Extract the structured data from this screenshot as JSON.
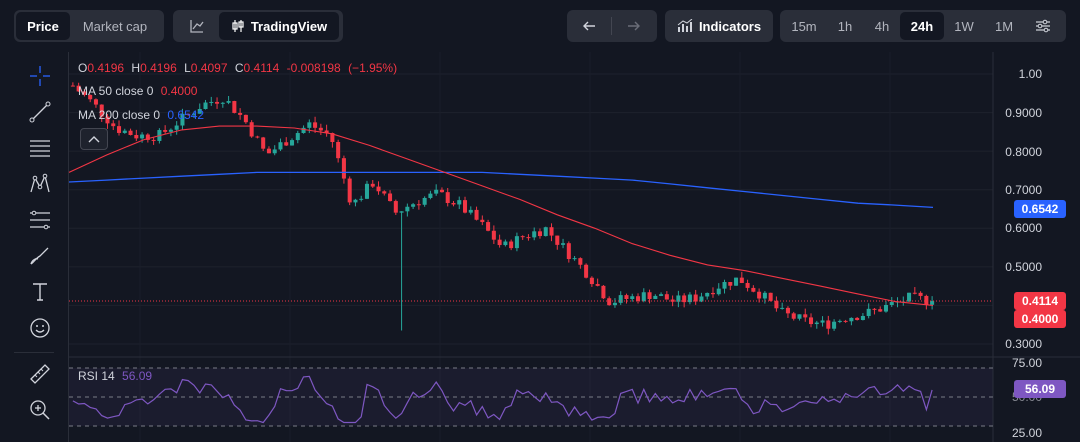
{
  "topbar": {
    "mode_tabs": [
      {
        "label": "Price",
        "active": true
      },
      {
        "label": "Market cap",
        "active": false
      }
    ],
    "chart_types": [
      {
        "icon": "line-chart-icon",
        "active": false
      },
      {
        "label": "TradingView",
        "icon": "candlestick-icon",
        "active": true
      }
    ],
    "indicators_label": "Indicators",
    "timeframes": [
      {
        "label": "15m",
        "active": false
      },
      {
        "label": "1h",
        "active": false
      },
      {
        "label": "4h",
        "active": false
      },
      {
        "label": "24h",
        "active": true
      },
      {
        "label": "1W",
        "active": false
      },
      {
        "label": "1M",
        "active": false
      }
    ]
  },
  "legend": {
    "ohlc": {
      "o_label": "O",
      "o": "0.4196",
      "h_label": "H",
      "h": "0.4196",
      "l_label": "L",
      "l": "0.4097",
      "c_label": "C",
      "c": "0.4114",
      "change": "-0.008198",
      "change_pct": "(−1.95%)"
    },
    "ma50": {
      "label": "MA 50 close 0",
      "value": "0.4000"
    },
    "ma200": {
      "label": "MA 200 close 0",
      "value": "0.6542"
    },
    "rsi": {
      "label": "RSI 14",
      "value": "56.09"
    }
  },
  "price_axis": {
    "labels": [
      "1.00",
      "0.9000",
      "0.8000",
      "0.7000",
      "0.6000",
      "0.5000",
      "0.3000"
    ],
    "tags": [
      {
        "label": "0.6542",
        "color": "#2962ff"
      },
      {
        "label": "0.4114",
        "color": "#f23645"
      },
      {
        "label": "0.4000",
        "color": "#f23645"
      }
    ]
  },
  "rsi_axis": {
    "labels": [
      "75.00",
      "50.00",
      "25.00"
    ],
    "tag": {
      "label": "56.09",
      "color": "#7e57c2"
    }
  },
  "colors": {
    "up": "#26a69a",
    "down": "#f23645",
    "ma50": "#f23645",
    "ma200": "#2962ff",
    "rsi": "#7e57c2",
    "background": "#131722"
  },
  "chart_data": {
    "type": "line",
    "series": [
      {
        "name": "MA 50 close 0",
        "values": [
          0.745,
          0.79,
          0.83,
          0.855,
          0.865,
          0.865,
          0.86,
          0.845,
          0.815,
          0.78,
          0.745,
          0.71,
          0.675,
          0.635,
          0.6,
          0.56,
          0.53,
          0.505,
          0.49,
          0.47,
          0.45,
          0.43,
          0.41,
          0.4
        ]
      },
      {
        "name": "MA 200 close 0",
        "values": [
          0.72,
          0.725,
          0.73,
          0.735,
          0.74,
          0.745,
          0.745,
          0.745,
          0.745,
          0.745,
          0.745,
          0.745,
          0.74,
          0.735,
          0.73,
          0.725,
          0.715,
          0.705,
          0.695,
          0.685,
          0.675,
          0.665,
          0.66,
          0.6542
        ]
      }
    ],
    "close": [
      0.97,
      0.92,
      0.86,
      0.84,
      0.84,
      0.88,
      0.92,
      0.94,
      0.88,
      0.79,
      0.83,
      0.87,
      0.84,
      0.66,
      0.72,
      0.64,
      0.67,
      0.69,
      0.66,
      0.61,
      0.55,
      0.58,
      0.6,
      0.54,
      0.48,
      0.41,
      0.42,
      0.43,
      0.41,
      0.42,
      0.45,
      0.47,
      0.43,
      0.38,
      0.36,
      0.35,
      0.37,
      0.38,
      0.4,
      0.42,
      0.4114
    ],
    "last_price": 0.4114,
    "ylim": [
      0.28,
      1.02
    ],
    "rsi": {
      "name": "RSI 14",
      "value": 56.09,
      "levels": [
        75,
        50,
        25
      ]
    }
  }
}
